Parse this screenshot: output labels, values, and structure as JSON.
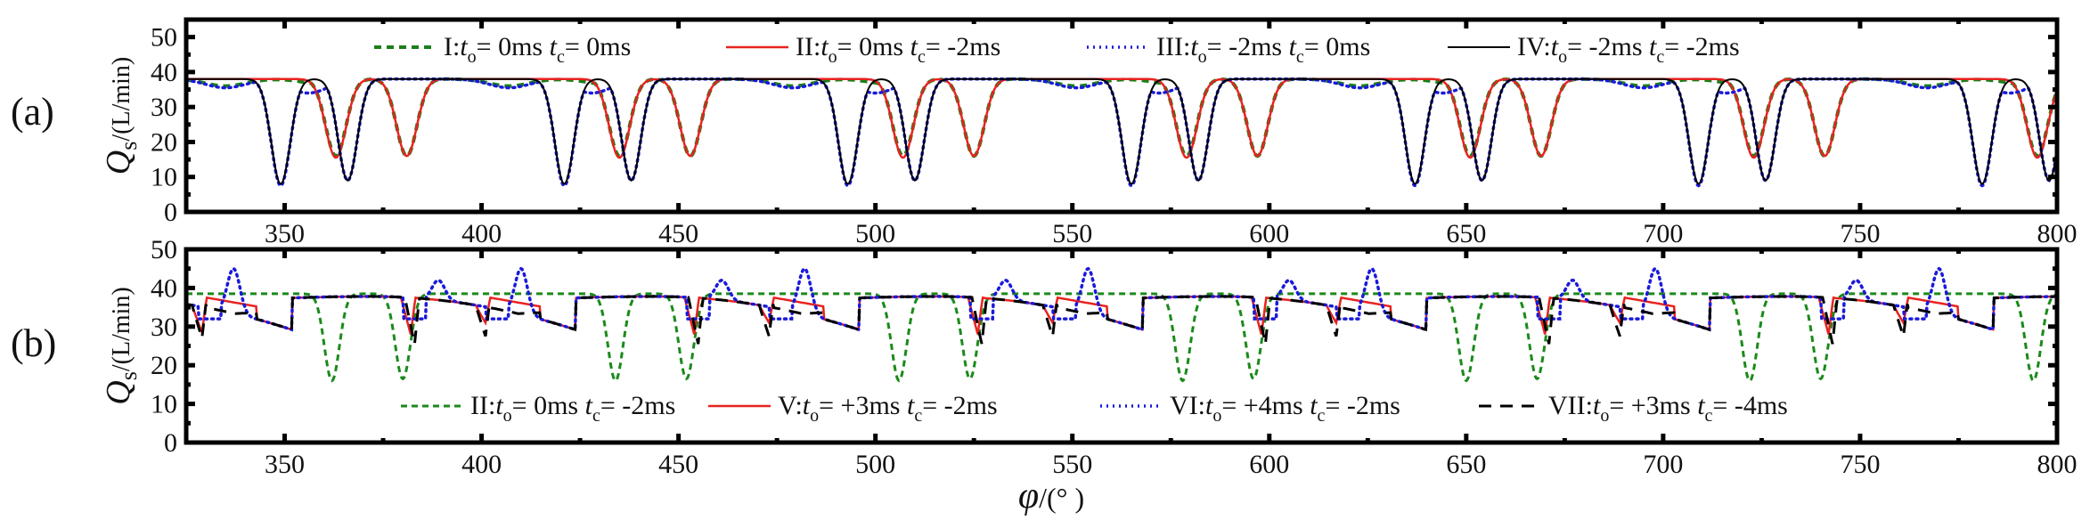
{
  "chart_data": [
    {
      "type": "line",
      "panel_label": "(a)",
      "title": "",
      "xlabel": "φ/(°)",
      "ylabel": "Q_s/(L/min)",
      "ylabel_main": "Q",
      "ylabel_sub": "s",
      "ylabel_unit": "/(L/min)",
      "xlim": [
        325,
        800
      ],
      "ylim": [
        0,
        55
      ],
      "xticks": [
        350,
        400,
        450,
        500,
        550,
        600,
        650,
        700,
        750,
        800
      ],
      "yticks": [
        0,
        10,
        20,
        30,
        40,
        50
      ],
      "grid": false,
      "legend_position": "top",
      "period_deg": 72,
      "baseline": 38,
      "series": [
        {
          "name": "I:to= 0ms tc= 0ms",
          "label_prefix": "I:",
          "to": "0ms",
          "tc": "0ms",
          "color": "#1a7f1a",
          "style": "dashed-thick",
          "dips": [
            [
              363,
              16
            ],
            [
              381,
              16
            ],
            [
              435,
              16
            ],
            [
              453,
              16
            ],
            [
              507,
              16
            ],
            [
              525,
              16
            ],
            [
              579,
              16
            ],
            [
              597,
              16
            ],
            [
              651,
              16
            ],
            [
              669,
              16
            ],
            [
              723,
              16
            ],
            [
              741,
              16
            ],
            [
              795,
              16
            ]
          ],
          "shallow_dips": [
            [
              335,
              36
            ],
            [
              360,
              36.5
            ],
            [
              407,
              36
            ],
            [
              432,
              36.5
            ],
            [
              479,
              36
            ],
            [
              504,
              36.5
            ],
            [
              551,
              36
            ],
            [
              576,
              36.5
            ],
            [
              623,
              36
            ],
            [
              648,
              36.5
            ],
            [
              695,
              36
            ],
            [
              720,
              36.5
            ],
            [
              767,
              36
            ],
            [
              792,
              36.5
            ]
          ]
        },
        {
          "name": "II:to= 0ms tc= -2ms",
          "label_prefix": "II:",
          "to": "0ms",
          "tc": "-2ms",
          "color": "#e8231f",
          "style": "solid",
          "dips": [
            [
              363,
              15.5
            ],
            [
              381,
              16
            ],
            [
              435,
              15.5
            ],
            [
              453,
              16
            ],
            [
              507,
              15.5
            ],
            [
              525,
              16
            ],
            [
              579,
              15.5
            ],
            [
              597,
              16
            ],
            [
              651,
              15.5
            ],
            [
              669,
              16
            ],
            [
              723,
              15.5
            ],
            [
              741,
              16
            ],
            [
              795,
              15.5
            ]
          ]
        },
        {
          "name": "III:to= -2ms tc= 0ms",
          "label_prefix": "III:",
          "to": "-2ms",
          "tc": "0ms",
          "color": "#1a1adb",
          "style": "dotted",
          "dips": [
            [
              349,
              7.5
            ],
            [
              366,
              9
            ],
            [
              421,
              7.5
            ],
            [
              438,
              9
            ],
            [
              493,
              7.5
            ],
            [
              510,
              9
            ],
            [
              565,
              7.5
            ],
            [
              582,
              9
            ],
            [
              637,
              7.5
            ],
            [
              654,
              9
            ],
            [
              709,
              7.5
            ],
            [
              726,
              9
            ],
            [
              781,
              7.5
            ],
            [
              798,
              9
            ]
          ],
          "shallow_dips": [
            [
              335,
              35.5
            ],
            [
              356,
              34
            ],
            [
              407,
              35.5
            ],
            [
              428,
              34
            ],
            [
              479,
              35.5
            ],
            [
              500,
              34
            ],
            [
              551,
              35.5
            ],
            [
              572,
              34
            ],
            [
              623,
              35.5
            ],
            [
              644,
              34
            ],
            [
              695,
              35.5
            ],
            [
              716,
              34
            ],
            [
              767,
              35.5
            ],
            [
              788,
              34
            ]
          ]
        },
        {
          "name": "IV:to= -2ms tc= -2ms",
          "label_prefix": "IV:",
          "to": "-2ms",
          "tc": "-2ms",
          "color": "#000000",
          "style": "solid-thin",
          "dips": [
            [
              349,
              8
            ],
            [
              366,
              9
            ],
            [
              421,
              8
            ],
            [
              438,
              9
            ],
            [
              493,
              8
            ],
            [
              510,
              9
            ],
            [
              565,
              8
            ],
            [
              582,
              9
            ],
            [
              637,
              8
            ],
            [
              654,
              9
            ],
            [
              709,
              8
            ],
            [
              726,
              9
            ],
            [
              781,
              8
            ],
            [
              798,
              9
            ]
          ]
        }
      ]
    },
    {
      "type": "line",
      "panel_label": "(b)",
      "title": "",
      "xlabel": "φ/(°)",
      "ylabel": "Q_s/(L/min)",
      "ylabel_main": "Q",
      "ylabel_sub": "s",
      "ylabel_unit": "/(L/min)",
      "xlim": [
        325,
        800
      ],
      "ylim": [
        0,
        50
      ],
      "xticks": [
        350,
        400,
        450,
        500,
        550,
        600,
        650,
        700,
        750,
        800
      ],
      "yticks": [
        0,
        10,
        20,
        30,
        40,
        50
      ],
      "grid": false,
      "legend_position": "bottom",
      "period_deg": 72,
      "series": [
        {
          "name": "II:to= 0ms tc= -2ms",
          "label_prefix": "II:",
          "to": "0ms",
          "tc": "-2ms",
          "color": "#1a8a1a",
          "style": "dashed",
          "baseline": 38.5,
          "dips": [
            [
              362,
              16
            ],
            [
              380,
              16.5
            ],
            [
              434,
              16
            ],
            [
              452,
              16.5
            ],
            [
              506,
              16
            ],
            [
              524,
              16.5
            ],
            [
              578,
              16
            ],
            [
              596,
              16.5
            ],
            [
              650,
              16
            ],
            [
              668,
              16.5
            ],
            [
              722,
              16
            ],
            [
              740,
              16.5
            ],
            [
              794,
              16
            ]
          ]
        },
        {
          "name": "V:to= +3ms tc= -2ms",
          "label_prefix": "V:",
          "to": "+3ms",
          "tc": "-2ms",
          "color": "#e8231f",
          "style": "solid",
          "notches": [
            [
              329,
              28.5
            ],
            [
              382,
              28
            ],
            [
              401,
              31
            ],
            [
              454,
              28
            ],
            [
              473,
              31
            ],
            [
              526,
              28
            ],
            [
              545,
              31
            ],
            [
              598,
              28
            ],
            [
              617,
              31
            ],
            [
              670,
              28
            ],
            [
              689,
              31
            ],
            [
              742,
              28
            ],
            [
              761,
              31
            ]
          ]
        },
        {
          "name": "VI:to= +4ms tc=-2ms",
          "label_prefix": "VI:",
          "to": "+4ms",
          "tc": "-2ms",
          "color": "#1a1adb",
          "style": "dotted",
          "peaks": [
            [
              337,
              45
            ],
            [
              389,
              42
            ],
            [
              410,
              45
            ],
            [
              461,
              42
            ],
            [
              482,
              45
            ],
            [
              533,
              42
            ],
            [
              554,
              45
            ],
            [
              605,
              42
            ],
            [
              626,
              45
            ],
            [
              677,
              42
            ],
            [
              698,
              45
            ],
            [
              749,
              42
            ],
            [
              770,
              45
            ]
          ]
        },
        {
          "name": "VII:to= +3ms tc= -4ms",
          "label_prefix": "VII:",
          "to": "+3ms",
          "tc": "-4ms",
          "color": "#000000",
          "style": "long-dashed",
          "notches": [
            [
              329,
              27
            ],
            [
              383,
              25.5
            ],
            [
              401,
              27.5
            ],
            [
              455,
              25.5
            ],
            [
              473,
              27.5
            ],
            [
              527,
              25.5
            ],
            [
              545,
              27.5
            ],
            [
              599,
              25.5
            ],
            [
              617,
              27.5
            ],
            [
              671,
              25.5
            ],
            [
              689,
              27.5
            ],
            [
              743,
              25.5
            ],
            [
              761,
              27.5
            ]
          ]
        }
      ]
    }
  ],
  "shared_xlabel": {
    "symbol": "φ",
    "unit": "/(°  )"
  }
}
